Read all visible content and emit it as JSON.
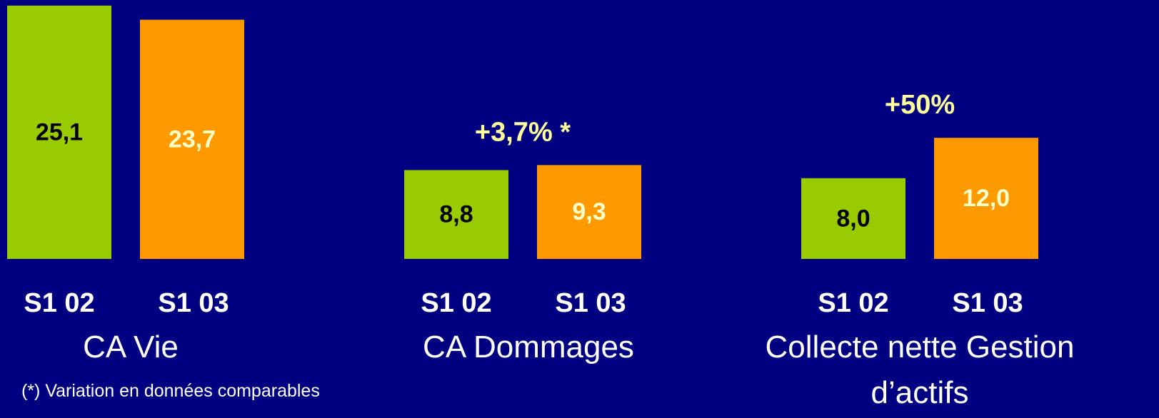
{
  "chart_data": [
    {
      "type": "bar",
      "title": "CA Vie",
      "categories": [
        "S1 02",
        "S1 03"
      ],
      "values": [
        25.1,
        23.7
      ],
      "value_labels": [
        "25,1",
        "23,7"
      ],
      "colors": [
        "#99cc00",
        "#ff9900"
      ]
    },
    {
      "type": "bar",
      "title": "CA Dommages",
      "annotation": "+3,7% *",
      "categories": [
        "S1 02",
        "S1 03"
      ],
      "values": [
        8.8,
        9.3
      ],
      "value_labels": [
        "8,8",
        "9,3"
      ],
      "colors": [
        "#99cc00",
        "#ff9900"
      ]
    },
    {
      "type": "bar",
      "title": "Collecte nette Gestion d’actifs",
      "annotation": "+50%",
      "categories": [
        "S1 02",
        "S1 03"
      ],
      "values": [
        8.0,
        12.0
      ],
      "value_labels": [
        "8,0",
        "12,0"
      ],
      "colors": [
        "#99cc00",
        "#ff9900"
      ]
    }
  ],
  "footnote": "(*) Variation en données comparables"
}
